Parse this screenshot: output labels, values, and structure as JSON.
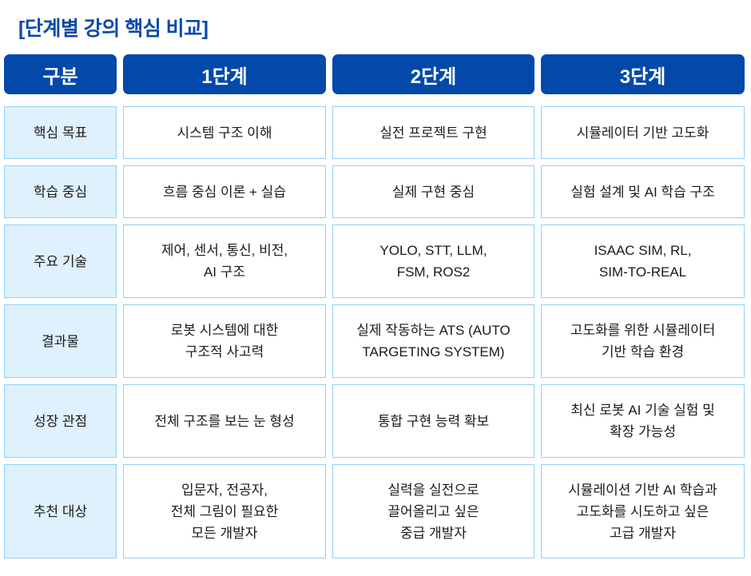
{
  "title": "[단계별 강의 핵심 비교]",
  "headers": [
    "구분",
    "1단계",
    "2단계",
    "3단계"
  ],
  "rows": [
    {
      "label": "핵심 목표",
      "cells": [
        "시스템 구조 이해",
        "실전 프로젝트 구현",
        "시뮬레이터 기반 고도화"
      ]
    },
    {
      "label": "학습 중심",
      "cells": [
        "흐름 중심 이론 + 실습",
        "실제 구현 중심",
        "실험 설계 및 AI 학습 구조"
      ]
    },
    {
      "label": "주요 기술",
      "cells": [
        "제어, 센서, 통신, 비전,\nAI 구조",
        "YOLO, STT, LLM,\nFSM, ROS2",
        "ISAAC SIM, RL,\nSIM-TO-REAL"
      ]
    },
    {
      "label": "결과물",
      "cells": [
        "로봇 시스템에 대한\n구조적 사고력",
        "실제 작동하는 ATS (AUTO\nTARGETING SYSTEM)",
        "고도화를 위한 시뮬레이터\n기반 학습 환경"
      ]
    },
    {
      "label": "성장 관점",
      "cells": [
        "전체 구조를 보는 눈 형성",
        "통합 구현 능력 확보",
        "최신 로봇 AI 기술 실험 및\n확장 가능성"
      ]
    },
    {
      "label": "추천 대상",
      "cells": [
        "입문자, 전공자,\n전체 그림이 필요한\n모든 개발자",
        "실력을 실전으로\n끌어올리고 싶은\n중급 개발자",
        "시뮬레이션 기반 AI 학습과\n고도화를 시도하고 싶은\n고급 개발자"
      ]
    }
  ],
  "colors": {
    "header": "#0249aa",
    "label_bg": "#dff1fd",
    "border": "#8fd0f7",
    "title": "#0b4aa8"
  }
}
